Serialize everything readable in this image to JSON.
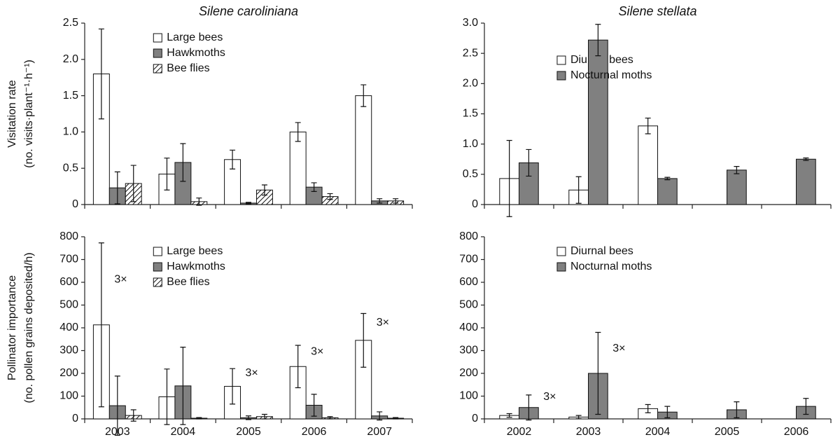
{
  "chart_data": [
    {
      "type": "bar",
      "title": "Silene caroliniana",
      "ylabel": [
        "Visitation rate",
        "(no. visits·plant⁻¹·h⁻¹)"
      ],
      "categories": [
        null,
        null,
        null,
        null,
        null
      ],
      "ylim": [
        0,
        2.5
      ],
      "yticks": [
        0,
        0.5,
        {
          "value": 1,
          "label": "1.0"
        },
        1.5,
        {
          "value": 2,
          "label": "2.0"
        },
        2.5
      ],
      "legend": "upper left",
      "series": [
        {
          "name": "Large bees",
          "color": "#ffffff",
          "values": [
            1.8,
            0.42,
            0.62,
            1.0,
            1.5
          ],
          "errors": [
            0.62,
            0.22,
            0.13,
            0.13,
            0.15
          ]
        },
        {
          "name": "Hawkmoths",
          "color": "#808080",
          "values": [
            0.23,
            0.58,
            0.02,
            0.24,
            0.05
          ],
          "errors": [
            0.22,
            0.26,
            0.01,
            0.06,
            0.03
          ]
        },
        {
          "name": "Bee flies",
          "color": "#ffffff",
          "hatch": true,
          "values": [
            0.29,
            0.04,
            0.2,
            0.11,
            0.05
          ],
          "errors": [
            0.25,
            0.05,
            0.07,
            0.04,
            0.03
          ]
        }
      ]
    },
    {
      "type": "bar",
      "title": "Silene stellata",
      "categories": [
        null,
        null,
        null,
        null,
        null
      ],
      "ylim": [
        0,
        3
      ],
      "yticks": [
        0,
        0.5,
        {
          "value": 1,
          "label": "1.0"
        },
        1.5,
        {
          "value": 2,
          "label": "2.0"
        },
        2.5,
        {
          "value": 3,
          "label": "3.0"
        }
      ],
      "legend": "upper left",
      "series": [
        {
          "name": "Diurnal bees",
          "color": "#ffffff",
          "values": [
            0.43,
            0.24,
            1.3,
            null,
            null
          ],
          "errors": [
            0.63,
            0.22,
            0.13,
            null,
            null
          ]
        },
        {
          "name": "Nocturnal moths",
          "color": "#808080",
          "values": [
            0.69,
            2.72,
            0.43,
            0.57,
            0.75
          ],
          "errors": [
            0.22,
            0.26,
            0.02,
            0.06,
            0.02
          ]
        }
      ]
    },
    {
      "type": "bar",
      "ylabel": [
        "Pollinator importance",
        "(no. pollen grains deposited/h)"
      ],
      "categories": [
        "2003",
        "2004",
        "2005",
        "2006",
        "2007"
      ],
      "ylim": [
        0,
        800
      ],
      "yticks": [
        0,
        100,
        200,
        300,
        400,
        500,
        600,
        700,
        800
      ],
      "legend": "upper left",
      "series": [
        {
          "name": "Large bees",
          "color": "#ffffff",
          "values": [
            413,
            97,
            143,
            230,
            345
          ],
          "errors": [
            360,
            122,
            78,
            93,
            118
          ]
        },
        {
          "name": "Hawkmoths",
          "color": "#808080",
          "values": [
            58,
            145,
            5,
            60,
            13
          ],
          "errors": [
            130,
            170,
            8,
            48,
            18
          ]
        },
        {
          "name": "Bee flies",
          "color": "#ffffff",
          "hatch": true,
          "values": [
            15,
            3,
            10,
            5,
            3
          ],
          "errors": [
            25,
            3,
            10,
            5,
            3
          ]
        }
      ],
      "annotations": [
        {
          "text": "3×",
          "category": "2003",
          "series": "Large bees"
        },
        {
          "text": "3×",
          "category": "2005",
          "series": "Large bees"
        },
        {
          "text": "3×",
          "category": "2006",
          "series": "Large bees"
        },
        {
          "text": "3×",
          "category": "2007",
          "series": "Large bees"
        }
      ]
    },
    {
      "type": "bar",
      "categories": [
        "2002",
        "2003",
        "2004",
        "2005",
        "2006"
      ],
      "ylim": [
        0,
        800
      ],
      "yticks": [
        0,
        100,
        200,
        300,
        400,
        500,
        600,
        700,
        800
      ],
      "legend": "upper left",
      "series": [
        {
          "name": "Diurnal bees",
          "color": "#ffffff",
          "values": [
            15,
            8,
            45,
            null,
            null
          ],
          "errors": [
            8,
            7,
            18,
            null,
            null
          ]
        },
        {
          "name": "Nocturnal moths",
          "color": "#808080",
          "values": [
            50,
            200,
            30,
            40,
            55
          ],
          "errors": [
            55,
            180,
            25,
            35,
            35
          ]
        }
      ],
      "annotations": [
        {
          "text": "3×",
          "category": "2002",
          "series": "Nocturnal moths"
        },
        {
          "text": "3×",
          "category": "2003",
          "series": "Nocturnal moths"
        }
      ]
    }
  ]
}
